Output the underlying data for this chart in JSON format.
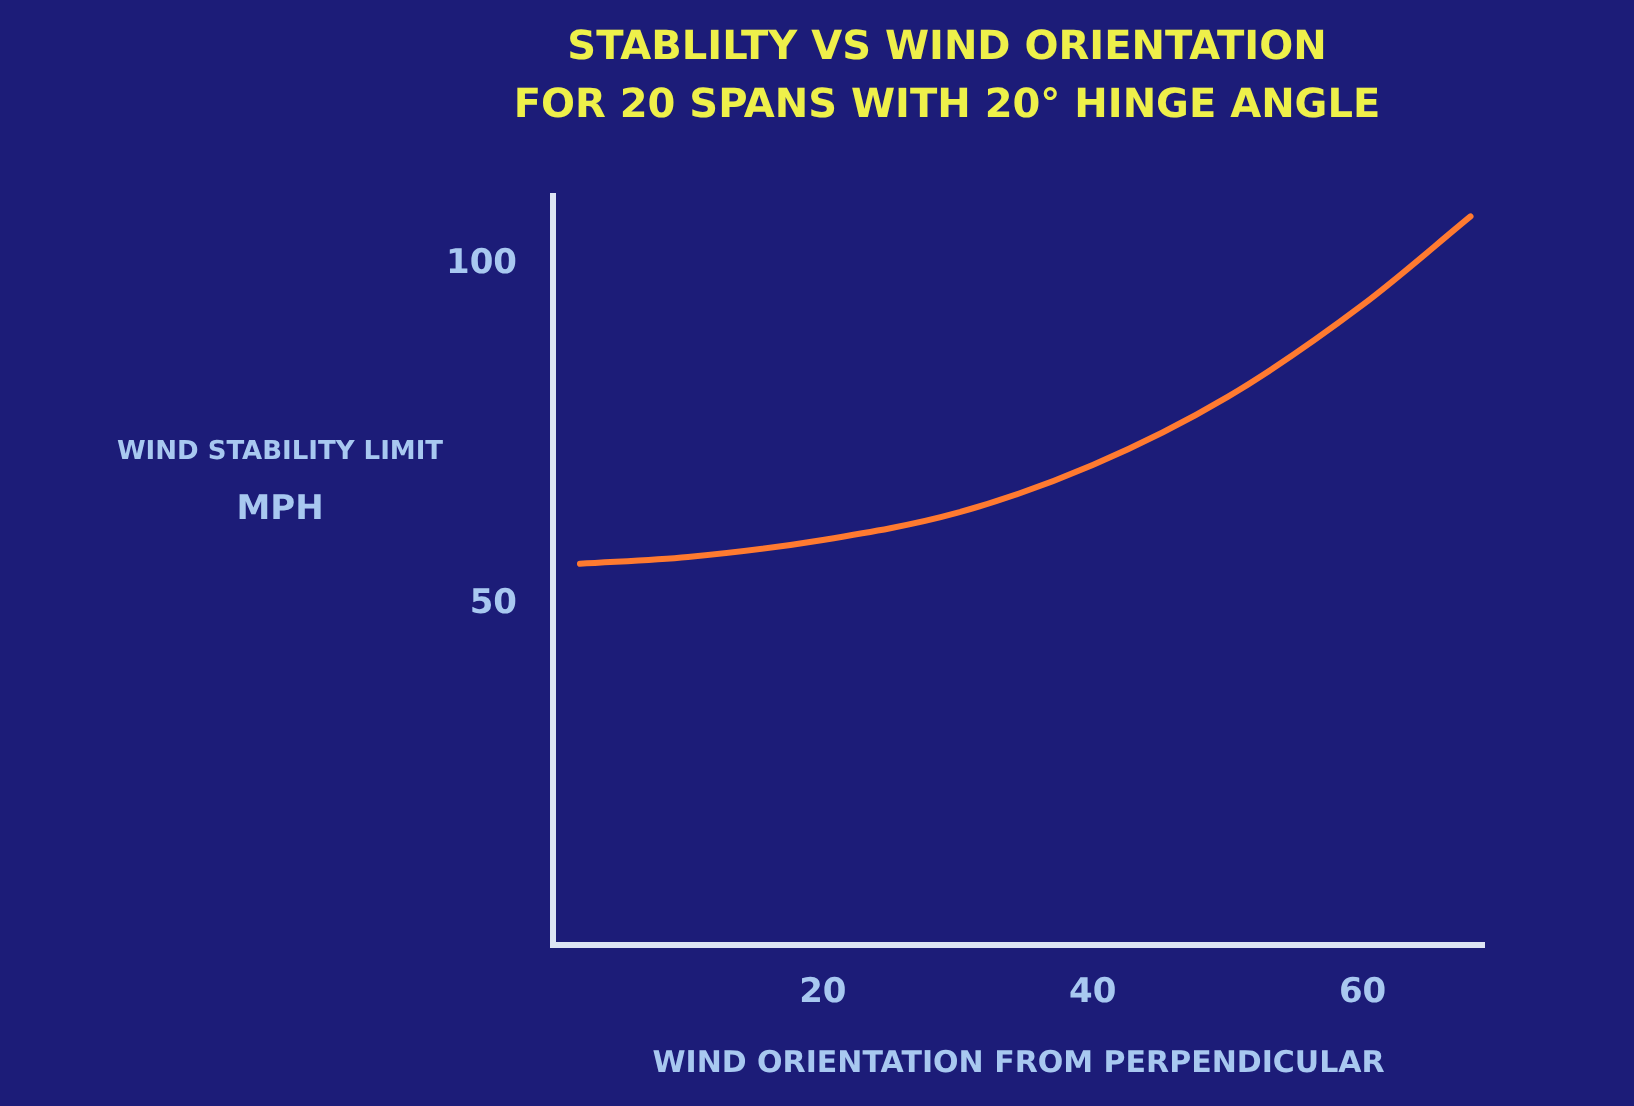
{
  "chart_data": {
    "type": "line",
    "title": "STABLILTY VS WIND ORIENTATION\nFOR 20 SPANS WITH 20° HINGE ANGLE",
    "xlabel": "WIND ORIENTATION FROM PERPENDICULAR",
    "ylabel": "WIND STABILITY LIMIT\nMPH",
    "x": [
      2,
      10,
      20,
      30,
      40,
      50,
      60,
      68
    ],
    "series": [
      {
        "color": "#ff7a30",
        "values": [
          56,
          57,
          59.5,
          63.5,
          70.5,
          80.5,
          94,
          107
        ]
      }
    ],
    "xlim": [
      0,
      69
    ],
    "xticks": [
      20,
      40,
      60
    ],
    "ylim": [
      0,
      110
    ],
    "yticks": [
      50,
      100
    ],
    "grid": false,
    "legend": false,
    "marker": "none",
    "line_style": "solid"
  }
}
